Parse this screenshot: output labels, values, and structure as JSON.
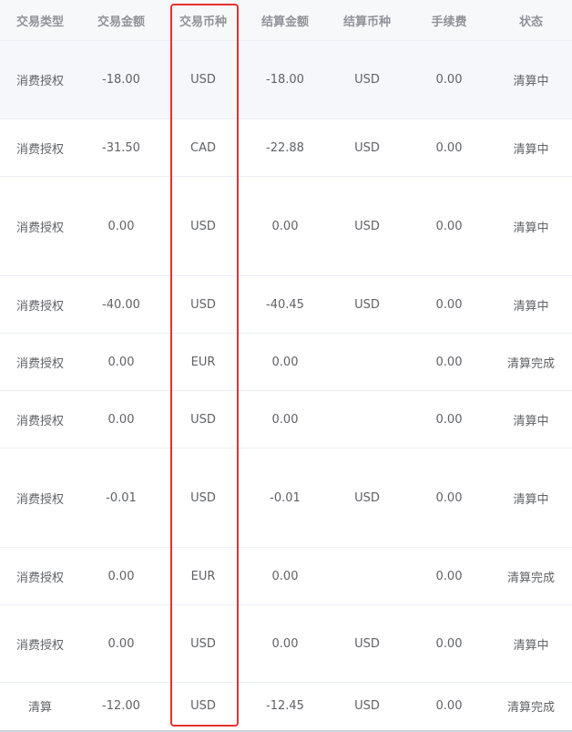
{
  "columns": [
    "交易类型",
    "交易金额",
    "交易币种",
    "结算金额",
    "结算币种",
    "手续费",
    "状态"
  ],
  "rows": [
    {
      "type": "消费授权",
      "amount": "-18.00",
      "currency": "USD",
      "settle_amount": "-18.00",
      "settle_currency": "USD",
      "fee": "0.00",
      "status": "清算中",
      "highlighted": true
    },
    {
      "type": "消费授权",
      "amount": "-31.50",
      "currency": "CAD",
      "settle_amount": "-22.88",
      "settle_currency": "USD",
      "fee": "0.00",
      "status": "清算中"
    },
    {
      "type": "消费授权",
      "amount": "0.00",
      "currency": "USD",
      "settle_amount": "0.00",
      "settle_currency": "USD",
      "fee": "0.00",
      "status": "清算中"
    },
    {
      "type": "消费授权",
      "amount": "-40.00",
      "currency": "USD",
      "settle_amount": "-40.45",
      "settle_currency": "USD",
      "fee": "0.00",
      "status": "清算中"
    },
    {
      "type": "消费授权",
      "amount": "0.00",
      "currency": "EUR",
      "settle_amount": "0.00",
      "settle_currency": "",
      "fee": "0.00",
      "status": "清算完成"
    },
    {
      "type": "消费授权",
      "amount": "0.00",
      "currency": "USD",
      "settle_amount": "0.00",
      "settle_currency": "",
      "fee": "0.00",
      "status": "清算中"
    },
    {
      "type": "消费授权",
      "amount": "-0.01",
      "currency": "USD",
      "settle_amount": "-0.01",
      "settle_currency": "USD",
      "fee": "0.00",
      "status": "清算中"
    },
    {
      "type": "消费授权",
      "amount": "0.00",
      "currency": "EUR",
      "settle_amount": "0.00",
      "settle_currency": "",
      "fee": "0.00",
      "status": "清算完成"
    },
    {
      "type": "消费授权",
      "amount": "0.00",
      "currency": "USD",
      "settle_amount": "0.00",
      "settle_currency": "USD",
      "fee": "0.00",
      "status": "清算中"
    },
    {
      "type": "清算",
      "amount": "-12.00",
      "currency": "USD",
      "settle_amount": "-12.45",
      "settle_currency": "USD",
      "fee": "0.00",
      "status": "清算完成"
    }
  ],
  "highlight_color": "#e5322d"
}
